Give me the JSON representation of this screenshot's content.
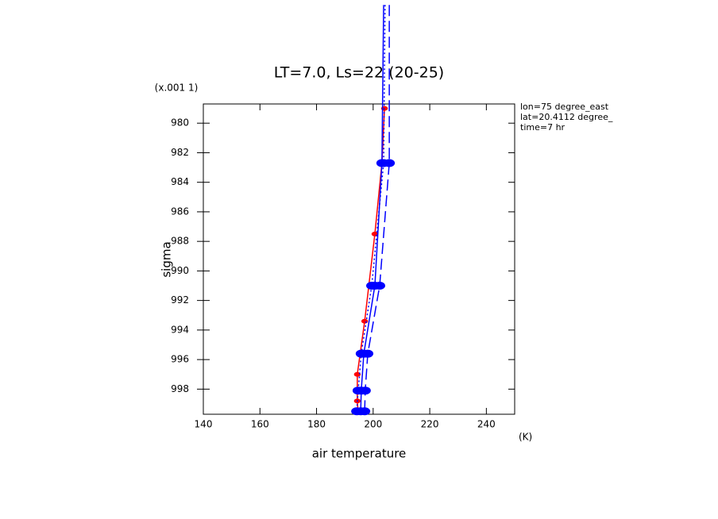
{
  "chart_data": {
    "type": "line",
    "title": "LT=7.0, Ls=22 (20-25)",
    "x_label": "air temperature",
    "x_unit": "(K)",
    "y_label": "sigma",
    "y_unit": "(x.001 1)",
    "notes": [
      "lon=75 degree_east",
      "lat=20.4112 degree_",
      "time=7 hr"
    ],
    "xlim": [
      140,
      250
    ],
    "xticks": [
      140,
      160,
      180,
      200,
      220,
      240
    ],
    "ylim": [
      978.7,
      999.7
    ],
    "yticks": [
      980,
      982,
      984,
      986,
      988,
      990,
      992,
      994,
      996,
      998
    ],
    "y_inverted": true,
    "series": [
      {
        "color": "#ff0000",
        "linestyle": "solid",
        "marker_size": 3,
        "x": [
          204,
          203.1,
          200.6,
          197,
          194.4,
          194.4,
          194.7
        ],
        "values": [
          979,
          982.7,
          987.5,
          993.4,
          997,
          998.8,
          999.6
        ]
      },
      {
        "color": "#0000ff",
        "linestyle": "solid",
        "marker_size": 5,
        "x": [
          203.7,
          203.1,
          200.6,
          196.7,
          195.8,
          195.6
        ],
        "values": [
          972,
          982.7,
          991,
          995.6,
          998.1,
          999.5
        ]
      },
      {
        "color": "#0000ff",
        "linestyle": "dashed",
        "marker_size": 5,
        "x": [
          205.7,
          205.7,
          202.3,
          198.1,
          197.2,
          197
        ],
        "values": [
          972,
          982.7,
          991,
          995.6,
          998.1,
          999.5
        ]
      },
      {
        "color": "#0000ff",
        "linestyle": "dotted",
        "marker_size": 5,
        "x": [
          204.2,
          203.7,
          199.5,
          195.8,
          194.7,
          194.2
        ],
        "values": [
          972,
          982.7,
          991,
          995.6,
          998.1,
          999.5
        ]
      }
    ]
  }
}
